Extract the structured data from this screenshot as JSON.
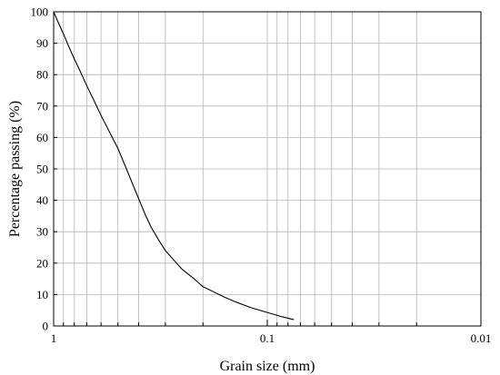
{
  "chart_data": {
    "type": "line",
    "title": "",
    "xlabel": "Grain size (mm)",
    "ylabel": "Percentage passing (%)",
    "x_scale": "log",
    "x_reversed": true,
    "xlim": [
      1,
      0.01
    ],
    "ylim": [
      0,
      100
    ],
    "grid": true,
    "x_ticks": [
      1,
      0.1,
      0.01
    ],
    "x_tick_labels": [
      "1",
      "0.1",
      "0.01"
    ],
    "y_ticks": [
      0,
      10,
      20,
      30,
      40,
      50,
      60,
      70,
      80,
      90,
      100
    ],
    "y_tick_labels": [
      "0",
      "10",
      "20",
      "30",
      "40",
      "50",
      "60",
      "70",
      "80",
      "90",
      "100"
    ],
    "series": [
      {
        "x": [
          1.0,
          0.95,
          0.9,
          0.85,
          0.8,
          0.75,
          0.7,
          0.65,
          0.6,
          0.55,
          0.5,
          0.45,
          0.42,
          0.4,
          0.37,
          0.35,
          0.32,
          0.3,
          0.27,
          0.25,
          0.22,
          0.2,
          0.18,
          0.16,
          0.14,
          0.12,
          0.1,
          0.09,
          0.085,
          0.075
        ],
        "y": [
          100,
          96.5,
          93,
          89,
          85,
          81,
          76.5,
          72,
          67,
          62,
          56.5,
          49,
          44,
          40.5,
          35,
          31.5,
          27,
          24,
          20.5,
          18,
          15,
          12.5,
          11,
          9.3,
          7.6,
          5.9,
          4.3,
          3.4,
          2.9,
          2
        ]
      }
    ]
  }
}
